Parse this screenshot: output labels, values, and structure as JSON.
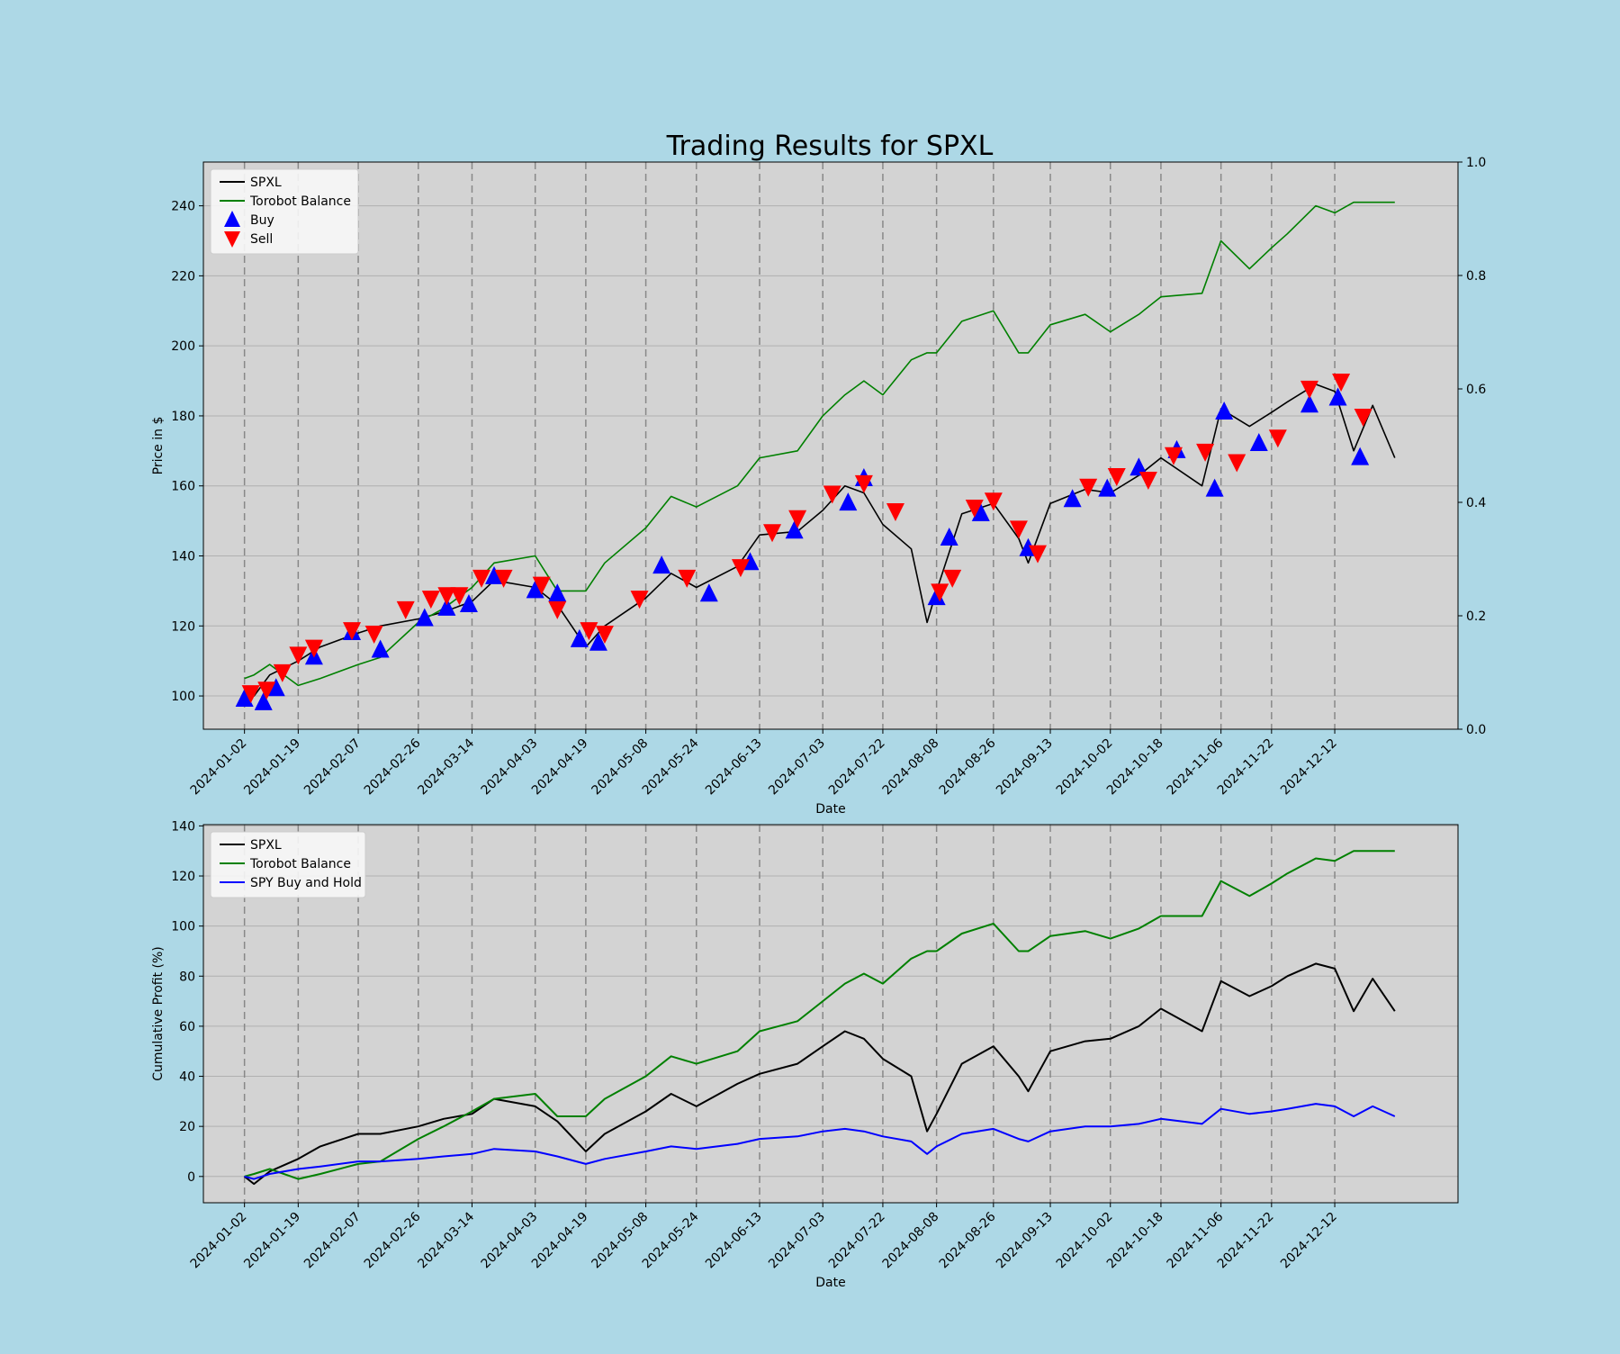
{
  "title": "Trading Results for SPXL",
  "colors": {
    "background": "#add8e6",
    "plot_bg": "#d3d3d3",
    "spxl": "#000000",
    "balance": "#008000",
    "spy": "#0000ff",
    "buy": "#0000ff",
    "sell": "#ff0000"
  },
  "chart_data": [
    {
      "type": "line",
      "title": "Trading Results for SPXL",
      "xlabel": "Date",
      "ylabel": "Price in $",
      "ylim": [
        90.5,
        252.5
      ],
      "yticks": [
        100,
        120,
        140,
        160,
        180,
        200,
        220,
        240
      ],
      "y2lim": [
        0.0,
        1.0
      ],
      "y2ticks": [
        "0.0",
        "0.2",
        "0.4",
        "0.6",
        "0.8",
        "1.0"
      ],
      "xlim": [
        "2023-12-20",
        "2025-01-20"
      ],
      "xticks": [
        "2024-01-02",
        "2024-01-19",
        "2024-02-07",
        "2024-02-26",
        "2024-03-14",
        "2024-04-03",
        "2024-04-19",
        "2024-05-08",
        "2024-05-24",
        "2024-06-13",
        "2024-07-03",
        "2024-07-22",
        "2024-08-08",
        "2024-08-26",
        "2024-09-13",
        "2024-10-02",
        "2024-10-18",
        "2024-11-06",
        "2024-11-22",
        "2024-12-12"
      ],
      "grid": true,
      "legend_position": "upper-left",
      "legend": [
        "SPXL",
        "Torobot Balance",
        "Buy",
        "Sell"
      ],
      "series": [
        {
          "name": "SPXL",
          "color": "#000000",
          "x": [
            "2024-01-02",
            "2024-01-05",
            "2024-01-10",
            "2024-01-19",
            "2024-01-26",
            "2024-02-07",
            "2024-02-14",
            "2024-02-26",
            "2024-03-05",
            "2024-03-14",
            "2024-03-21",
            "2024-04-03",
            "2024-04-10",
            "2024-04-19",
            "2024-04-25",
            "2024-05-08",
            "2024-05-16",
            "2024-05-24",
            "2024-06-06",
            "2024-06-13",
            "2024-06-25",
            "2024-07-03",
            "2024-07-10",
            "2024-07-16",
            "2024-07-22",
            "2024-07-31",
            "2024-08-05",
            "2024-08-08",
            "2024-08-16",
            "2024-08-26",
            "2024-09-03",
            "2024-09-06",
            "2024-09-13",
            "2024-09-24",
            "2024-10-02",
            "2024-10-11",
            "2024-10-18",
            "2024-10-31",
            "2024-11-06",
            "2024-11-15",
            "2024-11-22",
            "2024-11-27",
            "2024-12-06",
            "2024-12-12",
            "2024-12-18",
            "2024-12-24",
            "2024-12-31"
          ],
          "values": [
            101,
            100,
            106,
            110,
            114,
            118,
            120,
            122,
            124,
            127,
            133,
            131,
            126,
            114,
            120,
            128,
            135,
            131,
            137,
            146,
            147,
            153,
            160,
            158,
            149,
            142,
            121,
            130,
            152,
            155,
            145,
            138,
            155,
            159,
            158,
            163,
            168,
            160,
            182,
            177,
            181,
            184,
            189,
            187,
            170,
            183,
            168
          ]
        },
        {
          "name": "Torobot Balance",
          "color": "#008000",
          "x": [
            "2024-01-02",
            "2024-01-05",
            "2024-01-10",
            "2024-01-19",
            "2024-01-26",
            "2024-02-07",
            "2024-02-14",
            "2024-02-26",
            "2024-03-05",
            "2024-03-14",
            "2024-03-21",
            "2024-04-03",
            "2024-04-10",
            "2024-04-19",
            "2024-04-25",
            "2024-05-08",
            "2024-05-16",
            "2024-05-24",
            "2024-06-06",
            "2024-06-13",
            "2024-06-25",
            "2024-07-03",
            "2024-07-10",
            "2024-07-16",
            "2024-07-22",
            "2024-07-31",
            "2024-08-05",
            "2024-08-08",
            "2024-08-16",
            "2024-08-26",
            "2024-09-03",
            "2024-09-06",
            "2024-09-13",
            "2024-09-24",
            "2024-10-02",
            "2024-10-11",
            "2024-10-18",
            "2024-10-31",
            "2024-11-06",
            "2024-11-15",
            "2024-11-22",
            "2024-11-27",
            "2024-12-06",
            "2024-12-12",
            "2024-12-18",
            "2024-12-24",
            "2024-12-31"
          ],
          "values": [
            105,
            106,
            109,
            103,
            105,
            109,
            111,
            121,
            125,
            131,
            138,
            140,
            130,
            130,
            138,
            148,
            157,
            154,
            160,
            168,
            170,
            180,
            186,
            190,
            186,
            196,
            198,
            198,
            207,
            210,
            198,
            198,
            206,
            209,
            204,
            209,
            214,
            215,
            230,
            222,
            228,
            232,
            240,
            238,
            241,
            241,
            241
          ]
        },
        {
          "name": "Buy",
          "type": "scatter",
          "marker": "triangle-up",
          "color": "#0000ff",
          "x": [
            "2024-01-02",
            "2024-01-08",
            "2024-01-12",
            "2024-01-24",
            "2024-02-05",
            "2024-02-14",
            "2024-02-28",
            "2024-03-06",
            "2024-03-13",
            "2024-03-21",
            "2024-04-03",
            "2024-04-10",
            "2024-04-17",
            "2024-04-23",
            "2024-05-13",
            "2024-05-28",
            "2024-06-10",
            "2024-06-24",
            "2024-07-11",
            "2024-07-16",
            "2024-08-08",
            "2024-08-12",
            "2024-08-22",
            "2024-09-06",
            "2024-09-20",
            "2024-10-01",
            "2024-10-11",
            "2024-10-23",
            "2024-11-04",
            "2024-11-07",
            "2024-11-18",
            "2024-12-04",
            "2024-12-13",
            "2024-12-20"
          ],
          "values": [
            99,
            98,
            102,
            111,
            118,
            113,
            122,
            125,
            126,
            134,
            130,
            129,
            116,
            115,
            137,
            129,
            138,
            147,
            155,
            162,
            128,
            145,
            152,
            142,
            156,
            159,
            165,
            170,
            159,
            181,
            172,
            183,
            185,
            168
          ]
        },
        {
          "name": "Sell",
          "type": "scatter",
          "marker": "triangle-down",
          "color": "#ff0000",
          "x": [
            "2024-01-04",
            "2024-01-09",
            "2024-01-14",
            "2024-01-19",
            "2024-01-24",
            "2024-02-05",
            "2024-02-12",
            "2024-02-22",
            "2024-03-01",
            "2024-03-06",
            "2024-03-10",
            "2024-03-17",
            "2024-03-24",
            "2024-04-05",
            "2024-04-10",
            "2024-04-20",
            "2024-04-25",
            "2024-05-06",
            "2024-05-21",
            "2024-06-07",
            "2024-06-17",
            "2024-06-25",
            "2024-07-06",
            "2024-07-16",
            "2024-07-26",
            "2024-08-09",
            "2024-08-13",
            "2024-08-20",
            "2024-08-26",
            "2024-09-03",
            "2024-09-09",
            "2024-09-25",
            "2024-10-04",
            "2024-10-14",
            "2024-10-22",
            "2024-11-01",
            "2024-11-11",
            "2024-11-24",
            "2024-12-04",
            "2024-12-14",
            "2024-12-21"
          ],
          "values": [
            101,
            102,
            107,
            112,
            114,
            119,
            118,
            125,
            128,
            129,
            129,
            134,
            134,
            132,
            125,
            119,
            118,
            128,
            134,
            137,
            147,
            151,
            158,
            161,
            153,
            130,
            134,
            154,
            156,
            148,
            141,
            160,
            163,
            162,
            169,
            170,
            167,
            174,
            188,
            190,
            180
          ]
        }
      ]
    },
    {
      "type": "line",
      "xlabel": "Date",
      "ylabel": "Cumulative Profit (%)",
      "ylim": [
        -10.5,
        140.5
      ],
      "yticks": [
        0,
        20,
        40,
        60,
        80,
        100,
        120,
        140
      ],
      "xlim": [
        "2023-12-20",
        "2025-01-20"
      ],
      "xticks": [
        "2024-01-02",
        "2024-01-19",
        "2024-02-07",
        "2024-02-26",
        "2024-03-14",
        "2024-04-03",
        "2024-04-19",
        "2024-05-08",
        "2024-05-24",
        "2024-06-13",
        "2024-07-03",
        "2024-07-22",
        "2024-08-08",
        "2024-08-26",
        "2024-09-13",
        "2024-10-02",
        "2024-10-18",
        "2024-11-06",
        "2024-11-22",
        "2024-12-12"
      ],
      "grid": true,
      "legend_position": "upper-left",
      "legend": [
        "SPXL",
        "Torobot Balance",
        "SPY Buy and Hold"
      ],
      "series": [
        {
          "name": "SPXL",
          "color": "#000000",
          "x": [
            "2024-01-02",
            "2024-01-05",
            "2024-01-10",
            "2024-01-19",
            "2024-01-26",
            "2024-02-07",
            "2024-02-14",
            "2024-02-26",
            "2024-03-05",
            "2024-03-14",
            "2024-03-21",
            "2024-04-03",
            "2024-04-10",
            "2024-04-19",
            "2024-04-25",
            "2024-05-08",
            "2024-05-16",
            "2024-05-24",
            "2024-06-06",
            "2024-06-13",
            "2024-06-25",
            "2024-07-03",
            "2024-07-10",
            "2024-07-16",
            "2024-07-22",
            "2024-07-31",
            "2024-08-05",
            "2024-08-08",
            "2024-08-16",
            "2024-08-26",
            "2024-09-03",
            "2024-09-06",
            "2024-09-13",
            "2024-09-24",
            "2024-10-02",
            "2024-10-11",
            "2024-10-18",
            "2024-10-31",
            "2024-11-06",
            "2024-11-15",
            "2024-11-22",
            "2024-11-27",
            "2024-12-06",
            "2024-12-12",
            "2024-12-18",
            "2024-12-24",
            "2024-12-31"
          ],
          "values": [
            0,
            -3,
            2,
            7,
            12,
            17,
            17,
            20,
            23,
            25,
            31,
            28,
            22,
            10,
            17,
            26,
            33,
            28,
            37,
            41,
            45,
            52,
            58,
            55,
            47,
            40,
            18,
            25,
            45,
            52,
            40,
            34,
            50,
            54,
            55,
            60,
            67,
            58,
            78,
            72,
            76,
            80,
            85,
            83,
            66,
            79,
            66
          ]
        },
        {
          "name": "Torobot Balance",
          "color": "#008000",
          "x": [
            "2024-01-02",
            "2024-01-05",
            "2024-01-10",
            "2024-01-19",
            "2024-01-26",
            "2024-02-07",
            "2024-02-14",
            "2024-02-26",
            "2024-03-05",
            "2024-03-14",
            "2024-03-21",
            "2024-04-03",
            "2024-04-10",
            "2024-04-19",
            "2024-04-25",
            "2024-05-08",
            "2024-05-16",
            "2024-05-24",
            "2024-06-06",
            "2024-06-13",
            "2024-06-25",
            "2024-07-03",
            "2024-07-10",
            "2024-07-16",
            "2024-07-22",
            "2024-07-31",
            "2024-08-05",
            "2024-08-08",
            "2024-08-16",
            "2024-08-26",
            "2024-09-03",
            "2024-09-06",
            "2024-09-13",
            "2024-09-24",
            "2024-10-02",
            "2024-10-11",
            "2024-10-18",
            "2024-10-31",
            "2024-11-06",
            "2024-11-15",
            "2024-11-22",
            "2024-11-27",
            "2024-12-06",
            "2024-12-12",
            "2024-12-18",
            "2024-12-24",
            "2024-12-31"
          ],
          "values": [
            0,
            1,
            3,
            -1,
            1,
            5,
            6,
            15,
            20,
            26,
            31,
            33,
            24,
            24,
            31,
            40,
            48,
            45,
            50,
            58,
            62,
            70,
            77,
            81,
            77,
            87,
            90,
            90,
            97,
            101,
            90,
            90,
            96,
            98,
            95,
            99,
            104,
            104,
            118,
            112,
            117,
            121,
            127,
            126,
            130,
            130,
            130
          ]
        },
        {
          "name": "SPY Buy and Hold",
          "color": "#0000ff",
          "x": [
            "2024-01-02",
            "2024-01-05",
            "2024-01-10",
            "2024-01-19",
            "2024-01-26",
            "2024-02-07",
            "2024-02-14",
            "2024-02-26",
            "2024-03-05",
            "2024-03-14",
            "2024-03-21",
            "2024-04-03",
            "2024-04-10",
            "2024-04-19",
            "2024-04-25",
            "2024-05-08",
            "2024-05-16",
            "2024-05-24",
            "2024-06-06",
            "2024-06-13",
            "2024-06-25",
            "2024-07-03",
            "2024-07-10",
            "2024-07-16",
            "2024-07-22",
            "2024-07-31",
            "2024-08-05",
            "2024-08-08",
            "2024-08-16",
            "2024-08-26",
            "2024-09-03",
            "2024-09-06",
            "2024-09-13",
            "2024-09-24",
            "2024-10-02",
            "2024-10-11",
            "2024-10-18",
            "2024-10-31",
            "2024-11-06",
            "2024-11-15",
            "2024-11-22",
            "2024-11-27",
            "2024-12-06",
            "2024-12-12",
            "2024-12-18",
            "2024-12-24",
            "2024-12-31"
          ],
          "values": [
            0,
            -1,
            1,
            3,
            4,
            6,
            6,
            7,
            8,
            9,
            11,
            10,
            8,
            5,
            7,
            10,
            12,
            11,
            13,
            15,
            16,
            18,
            19,
            18,
            16,
            14,
            9,
            12,
            17,
            19,
            15,
            14,
            18,
            20,
            20,
            21,
            23,
            21,
            27,
            25,
            26,
            27,
            29,
            28,
            24,
            28,
            24
          ]
        }
      ]
    }
  ]
}
